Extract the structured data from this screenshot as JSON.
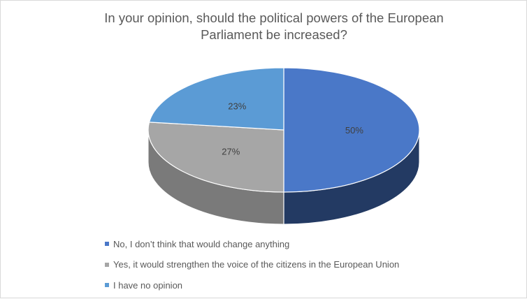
{
  "chart_data": {
    "type": "pie",
    "title_lines": [
      "In your opinion, should the political powers of the European",
      "Parliament be increased?"
    ],
    "slices": [
      {
        "label": "No, I don’t think that would change anything",
        "value": 50,
        "data_label": "50%",
        "color": "#4a78c8",
        "side_color": "#233a63"
      },
      {
        "label": "Yes, it would strengthen the voice of the citizens in the European Union",
        "value": 27,
        "data_label": "27%",
        "color": "#a6a6a6",
        "side_color": "#7a7a7a"
      },
      {
        "label": "I have no opinion",
        "value": 23,
        "data_label": "23%",
        "color": "#5b9bd5",
        "side_color": "#3d6f9e"
      }
    ],
    "legend_position": "bottom",
    "style": "3d"
  }
}
